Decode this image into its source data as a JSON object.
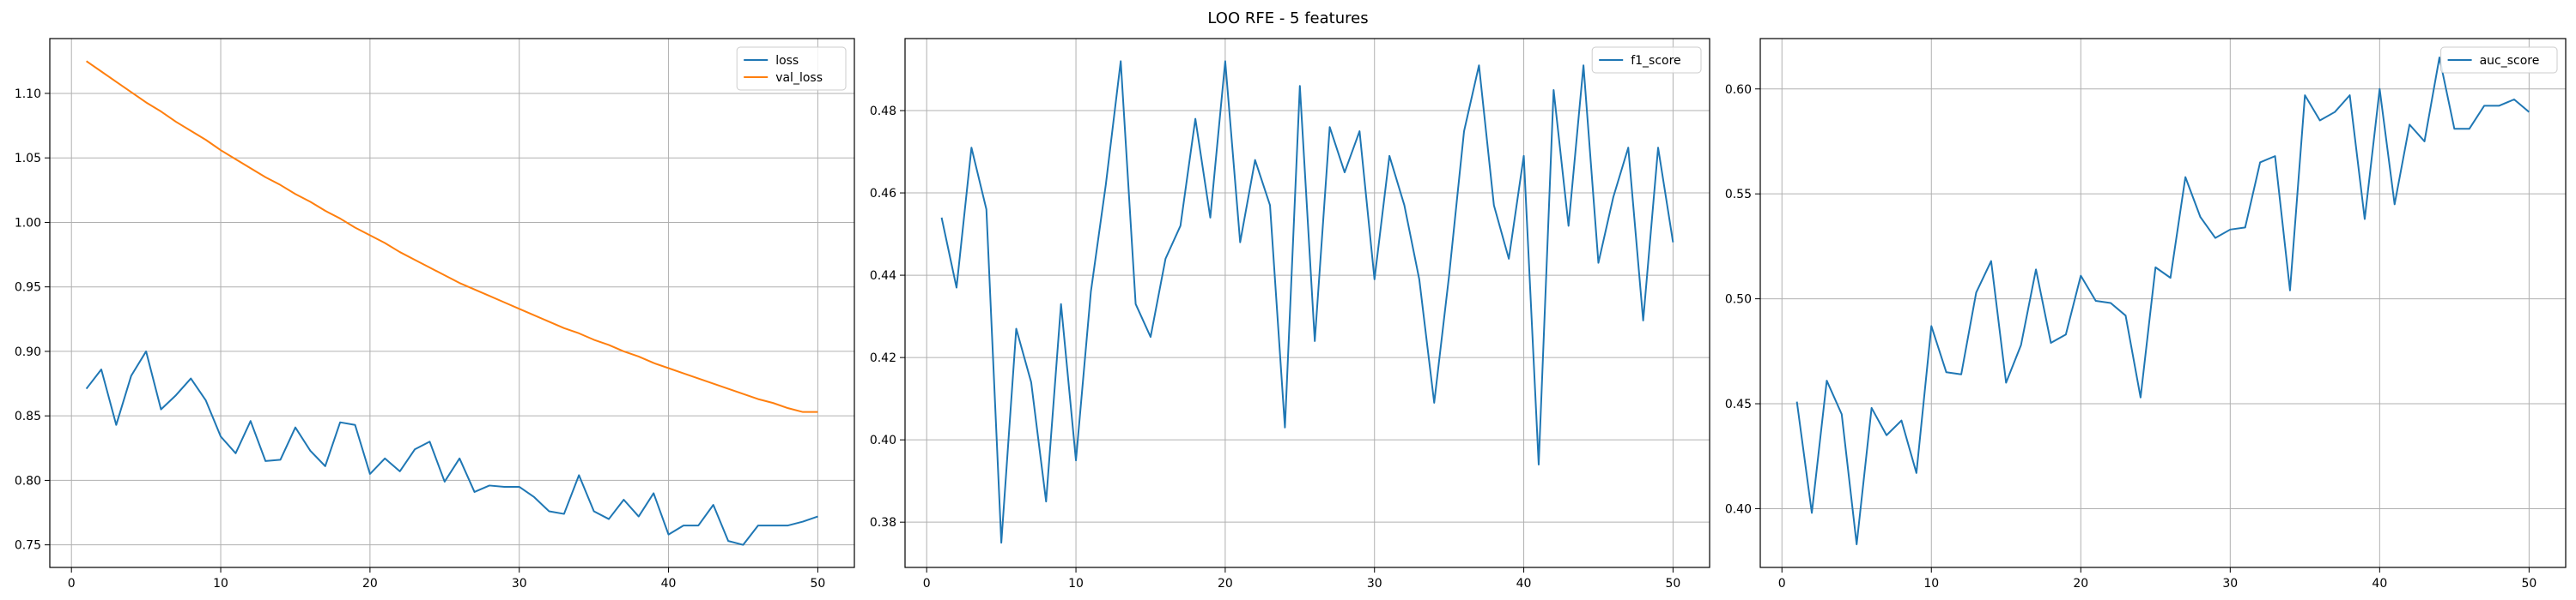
{
  "figure": {
    "suptitle": "LOO RFE - 5 features"
  },
  "colors": {
    "blue": "#1f77b4",
    "orange": "#ff7f0e",
    "grid": "#b0b0b0",
    "frame": "#000000"
  },
  "chart_data": [
    {
      "type": "line",
      "title": "",
      "xlabel": "",
      "ylabel": "",
      "xlim": [
        -1.45,
        52.45
      ],
      "ylim": [
        0.7325,
        1.1425
      ],
      "xticks": [
        0,
        10,
        20,
        30,
        40,
        50
      ],
      "yticks": [
        0.75,
        0.8,
        0.85,
        0.9,
        0.95,
        1.0,
        1.05,
        1.1
      ],
      "ytick_labels": [
        "0.75",
        "0.80",
        "0.85",
        "0.90",
        "0.95",
        "1.00",
        "1.05",
        "1.10"
      ],
      "grid": true,
      "legend": "top-right",
      "x": [
        1,
        2,
        3,
        4,
        5,
        6,
        7,
        8,
        9,
        10,
        11,
        12,
        13,
        14,
        15,
        16,
        17,
        18,
        19,
        20,
        21,
        22,
        23,
        24,
        25,
        26,
        27,
        28,
        29,
        30,
        31,
        32,
        33,
        34,
        35,
        36,
        37,
        38,
        39,
        40,
        41,
        42,
        43,
        44,
        45,
        46,
        47,
        48,
        49,
        50
      ],
      "series": [
        {
          "name": "loss",
          "color": "#1f77b4",
          "values": [
            0.871,
            0.886,
            0.843,
            0.881,
            0.9,
            0.855,
            0.866,
            0.879,
            0.862,
            0.834,
            0.821,
            0.846,
            0.815,
            0.816,
            0.841,
            0.823,
            0.811,
            0.845,
            0.843,
            0.805,
            0.817,
            0.807,
            0.824,
            0.83,
            0.799,
            0.817,
            0.791,
            0.796,
            0.795,
            0.795,
            0.787,
            0.776,
            0.774,
            0.804,
            0.776,
            0.77,
            0.785,
            0.772,
            0.79,
            0.758,
            0.765,
            0.765,
            0.781,
            0.753,
            0.75,
            0.765,
            0.765,
            0.765,
            0.768,
            0.772
          ]
        },
        {
          "name": "val_loss",
          "color": "#ff7f0e",
          "values": [
            1.125,
            1.117,
            1.109,
            1.101,
            1.093,
            1.086,
            1.078,
            1.071,
            1.064,
            1.056,
            1.049,
            1.042,
            1.035,
            1.029,
            1.022,
            1.016,
            1.009,
            1.003,
            0.996,
            0.99,
            0.984,
            0.977,
            0.971,
            0.965,
            0.959,
            0.953,
            0.948,
            0.943,
            0.938,
            0.933,
            0.928,
            0.923,
            0.918,
            0.914,
            0.909,
            0.905,
            0.9,
            0.896,
            0.891,
            0.887,
            0.883,
            0.879,
            0.875,
            0.871,
            0.867,
            0.863,
            0.86,
            0.856,
            0.853,
            0.853
          ]
        }
      ]
    },
    {
      "type": "line",
      "title": "",
      "xlabel": "",
      "ylabel": "",
      "xlim": [
        -1.45,
        52.45
      ],
      "ylim": [
        0.369,
        0.4975
      ],
      "xticks": [
        0,
        10,
        20,
        30,
        40,
        50
      ],
      "yticks": [
        0.38,
        0.4,
        0.42,
        0.44,
        0.46,
        0.48
      ],
      "ytick_labels": [
        "0.38",
        "0.40",
        "0.42",
        "0.44",
        "0.46",
        "0.48"
      ],
      "grid": true,
      "legend": "top-right",
      "x": [
        1,
        2,
        3,
        4,
        5,
        6,
        7,
        8,
        9,
        10,
        11,
        12,
        13,
        14,
        15,
        16,
        17,
        18,
        19,
        20,
        21,
        22,
        23,
        24,
        25,
        26,
        27,
        28,
        29,
        30,
        31,
        32,
        33,
        34,
        35,
        36,
        37,
        38,
        39,
        40,
        41,
        42,
        43,
        44,
        45,
        46,
        47,
        48,
        49,
        50
      ],
      "series": [
        {
          "name": "f1_score",
          "color": "#1f77b4",
          "values": [
            0.454,
            0.437,
            0.471,
            0.456,
            0.375,
            0.427,
            0.414,
            0.385,
            0.433,
            0.395,
            0.436,
            0.462,
            0.492,
            0.433,
            0.425,
            0.444,
            0.452,
            0.478,
            0.454,
            0.492,
            0.448,
            0.468,
            0.457,
            0.403,
            0.486,
            0.424,
            0.476,
            0.465,
            0.475,
            0.439,
            0.469,
            0.457,
            0.439,
            0.409,
            0.44,
            0.475,
            0.491,
            0.457,
            0.444,
            0.469,
            0.394,
            0.485,
            0.452,
            0.491,
            0.443,
            0.459,
            0.471,
            0.429,
            0.471,
            0.448
          ]
        }
      ]
    },
    {
      "type": "line",
      "title": "",
      "xlabel": "",
      "ylabel": "",
      "xlim": [
        -1.45,
        52.45
      ],
      "ylim": [
        0.372,
        0.624
      ],
      "xticks": [
        0,
        10,
        20,
        30,
        40,
        50
      ],
      "yticks": [
        0.4,
        0.45,
        0.5,
        0.55,
        0.6
      ],
      "ytick_labels": [
        "0.40",
        "0.45",
        "0.50",
        "0.55",
        "0.60"
      ],
      "grid": true,
      "legend": "top-right",
      "x": [
        1,
        2,
        3,
        4,
        5,
        6,
        7,
        8,
        9,
        10,
        11,
        12,
        13,
        14,
        15,
        16,
        17,
        18,
        19,
        20,
        21,
        22,
        23,
        24,
        25,
        26,
        27,
        28,
        29,
        30,
        31,
        32,
        33,
        34,
        35,
        36,
        37,
        38,
        39,
        40,
        41,
        42,
        43,
        44,
        45,
        46,
        47,
        48,
        49,
        50
      ],
      "series": [
        {
          "name": "auc_score",
          "color": "#1f77b4",
          "values": [
            0.451,
            0.398,
            0.461,
            0.445,
            0.383,
            0.448,
            0.435,
            0.442,
            0.417,
            0.487,
            0.465,
            0.464,
            0.503,
            0.518,
            0.46,
            0.478,
            0.514,
            0.479,
            0.483,
            0.511,
            0.499,
            0.498,
            0.492,
            0.453,
            0.515,
            0.51,
            0.558,
            0.539,
            0.529,
            0.533,
            0.534,
            0.565,
            0.568,
            0.504,
            0.597,
            0.585,
            0.589,
            0.597,
            0.538,
            0.6,
            0.545,
            0.583,
            0.575,
            0.615,
            0.581,
            0.581,
            0.592,
            0.592,
            0.595,
            0.589
          ]
        }
      ]
    }
  ]
}
